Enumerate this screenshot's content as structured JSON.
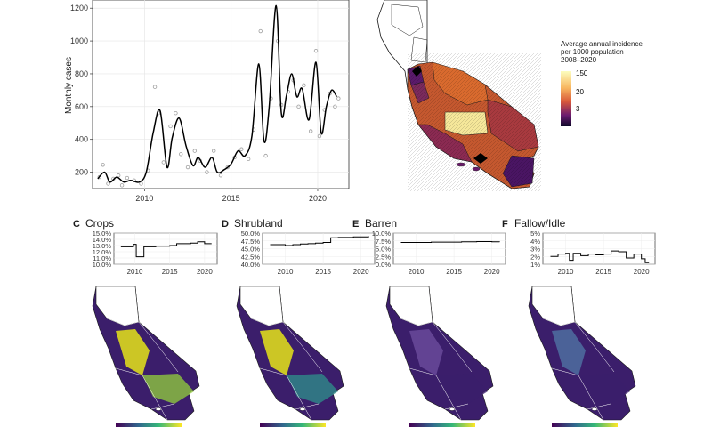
{
  "main_chart": {
    "type": "line",
    "ylabel": "Monthly cases",
    "ylim": [
      100,
      1250
    ],
    "xlim": [
      2007,
      2021.8
    ],
    "yticks": [
      "200",
      "400",
      "600",
      "800",
      "1000",
      "1200"
    ],
    "xticks": [
      "2010",
      "2015",
      "2020"
    ],
    "line_color": "#000000",
    "point_color": "#9e9e9e"
  },
  "chart_data": [
    {
      "type": "scatter",
      "name_text": "Monthly cases",
      "ylabel": "Monthly cases",
      "ylim": [
        100,
        1250
      ],
      "smoothed": {
        "x": [
          2007.3,
          2007.7,
          2008.0,
          2008.4,
          2008.8,
          2009.2,
          2009.7,
          2010.1,
          2010.5,
          2010.9,
          2011.3,
          2011.6,
          2012.0,
          2012.4,
          2012.8,
          2013.1,
          2013.5,
          2013.9,
          2014.2,
          2014.6,
          2015.0,
          2015.4,
          2015.8,
          2016.2,
          2016.6,
          2016.9,
          2017.2,
          2017.6,
          2017.9,
          2018.2,
          2018.5,
          2018.8,
          2019.1,
          2019.5,
          2019.9,
          2020.2,
          2020.5,
          2020.8,
          2021.1
        ],
        "y": [
          160,
          200,
          140,
          170,
          140,
          150,
          140,
          200,
          440,
          575,
          230,
          410,
          530,
          360,
          240,
          290,
          230,
          290,
          200,
          215,
          250,
          330,
          300,
          420,
          860,
          390,
          600,
          1215,
          560,
          670,
          800,
          660,
          710,
          520,
          870,
          440,
          600,
          700,
          660
        ]
      },
      "observed": {
        "x": [
          2007.4,
          2007.6,
          2007.9,
          2008.2,
          2008.5,
          2008.7,
          2009.0,
          2009.4,
          2009.8,
          2010.2,
          2010.6,
          2010.8,
          2011.1,
          2011.5,
          2011.8,
          2012.1,
          2012.5,
          2012.9,
          2013.2,
          2013.6,
          2014.0,
          2014.4,
          2014.8,
          2015.2,
          2015.6,
          2016.0,
          2016.3,
          2016.7,
          2017.0,
          2017.3,
          2017.7,
          2017.9,
          2018.3,
          2018.6,
          2018.9,
          2019.2,
          2019.6,
          2019.9,
          2020.1,
          2020.4,
          2020.7,
          2021.0,
          2021.2
        ],
        "y": [
          170,
          245,
          130,
          160,
          180,
          120,
          165,
          150,
          130,
          210,
          720,
          560,
          260,
          480,
          560,
          310,
          230,
          330,
          270,
          200,
          330,
          180,
          230,
          290,
          340,
          280,
          460,
          1060,
          300,
          650,
          1000,
          610,
          690,
          760,
          600,
          730,
          450,
          940,
          420,
          580,
          680,
          600,
          650
        ]
      }
    },
    {
      "type": "line",
      "panel_letter": "C",
      "title": "Crops",
      "yticks": [
        "15.0%",
        "14.0%",
        "13.0%",
        "12.0%",
        "11.0%",
        "10.0%"
      ],
      "ylim": [
        10,
        15
      ],
      "x": [
        2008,
        2009,
        2009.8,
        2010.2,
        2010.8,
        2011.3,
        2012,
        2013,
        2014,
        2015,
        2016,
        2017,
        2018,
        2019,
        2020,
        2021
      ],
      "y": [
        12.8,
        12.8,
        13.2,
        11.2,
        11.2,
        12.8,
        12.8,
        12.9,
        12.9,
        13.0,
        13.3,
        13.3,
        13.4,
        13.6,
        13.3,
        13.3
      ]
    },
    {
      "type": "line",
      "panel_letter": "D",
      "title": "Shrubland",
      "yticks": [
        "50.0%",
        "47.5%",
        "45.0%",
        "42.5%",
        "40.0%"
      ],
      "ylim": [
        40,
        50
      ],
      "x": [
        2008,
        2009,
        2010,
        2011,
        2012,
        2013,
        2014,
        2015,
        2016,
        2017,
        2018,
        2019,
        2020,
        2021
      ],
      "y": [
        46.3,
        46.3,
        46.0,
        46.3,
        46.5,
        46.6,
        46.8,
        47.0,
        48.5,
        48.6,
        48.6,
        48.8,
        48.8,
        49.0
      ]
    },
    {
      "type": "line",
      "panel_letter": "E",
      "title": "Barren",
      "yticks": [
        "10.0%",
        "7.5%",
        "5.0%",
        "2.5%",
        "0.0%"
      ],
      "ylim": [
        0,
        10
      ],
      "x": [
        2008,
        2010,
        2012,
        2014,
        2016,
        2018,
        2020,
        2021
      ],
      "y": [
        7.0,
        7.0,
        7.1,
        7.1,
        7.2,
        7.3,
        7.2,
        7.1
      ]
    },
    {
      "type": "line",
      "panel_letter": "F",
      "title": "Fallow/Idle",
      "yticks": [
        "5%",
        "4%",
        "3%",
        "2%",
        "1%"
      ],
      "ylim": [
        1,
        5
      ],
      "x": [
        2008,
        2009,
        2010,
        2010.5,
        2011,
        2012,
        2013,
        2014,
        2015,
        2016,
        2017,
        2018,
        2019,
        2020,
        2020.5,
        2021
      ],
      "y": [
        2.0,
        2.3,
        2.4,
        1.5,
        2.4,
        2.1,
        2.3,
        2.2,
        2.3,
        2.7,
        2.6,
        1.8,
        2.3,
        1.7,
        1.2,
        1.2
      ]
    }
  ],
  "panel_xticks": [
    "2010",
    "2015",
    "2020"
  ],
  "map_legend": {
    "title": "Average annual incidence\nper 1000 population\n2008–2020",
    "labels": [
      "150",
      "20",
      "3"
    ]
  },
  "colors": {
    "incidence_high": "#fcfdbf",
    "incidence_mid": "#e8743b",
    "incidence_low": "#000004",
    "viridis_low": "#3b1e6b",
    "viridis_mid": "#2f8a8a",
    "viridis_high": "#e6e419",
    "county_line": "#1a1a1a"
  }
}
